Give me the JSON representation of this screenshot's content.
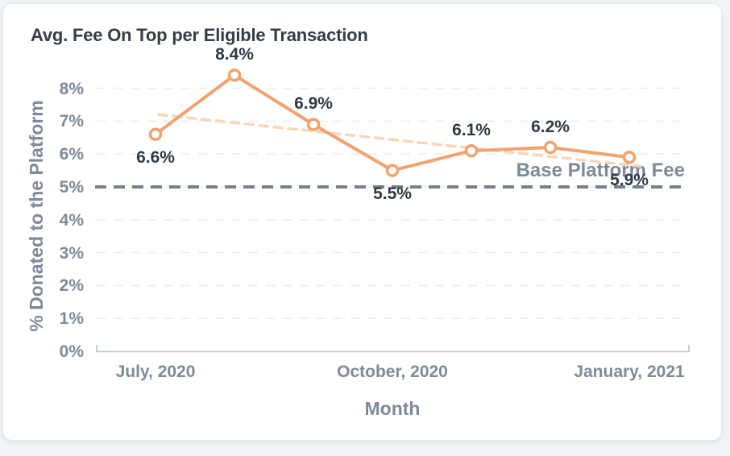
{
  "chart_data": {
    "type": "line",
    "title": "Avg. Fee On Top per Eligible Transaction",
    "xlabel": "Month",
    "ylabel": "% Donated to the Platform",
    "values": [
      6.6,
      8.4,
      6.9,
      5.5,
      6.1,
      6.2,
      5.9
    ],
    "point_labels": [
      "6.6%",
      "8.4%",
      "6.9%",
      "5.5%",
      "6.1%",
      "6.2%",
      "5.9%"
    ],
    "label_positions": [
      "below",
      "above",
      "above",
      "below",
      "above",
      "above",
      "below"
    ],
    "y_ticks": [
      "0%",
      "1%",
      "2%",
      "3%",
      "4%",
      "5%",
      "6%",
      "7%",
      "8%"
    ],
    "x_ticks": [
      {
        "label": "July, 2020",
        "index": 0
      },
      {
        "label": "October, 2020",
        "index": 3
      },
      {
        "label": "January, 2021",
        "index": 6
      }
    ],
    "ylim": [
      0,
      8.8
    ],
    "grid": "dashed horizontal",
    "baseline": {
      "label": "Base Platform Fee",
      "value": 5,
      "style": "dashed"
    },
    "trendline": {
      "start_pct": 7.2,
      "end_pct": 5.63,
      "style": "dashed"
    },
    "colors": {
      "series": "#F2A26E",
      "trend": "#F9D6B8",
      "baseline": "#75818E",
      "grid": "#EBEDEE",
      "axis": "#B9C4CD",
      "axis_text": "#7D8A99",
      "data_label": "#2E3A45",
      "title": "#333E48",
      "card_bg": "#FFFFFF",
      "page_bg": "#F0F4F6"
    }
  }
}
